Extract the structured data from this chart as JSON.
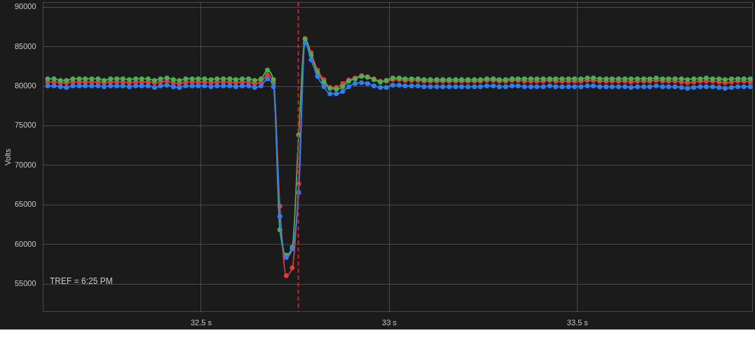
{
  "chart_data": {
    "type": "line",
    "ylabel": "Volts",
    "annotations": [
      "TREF = 6:25 PM"
    ],
    "x": [
      32.093,
      32.11,
      32.127,
      32.143,
      32.16,
      32.177,
      32.193,
      32.21,
      32.227,
      32.243,
      32.26,
      32.277,
      32.293,
      32.31,
      32.327,
      32.343,
      32.36,
      32.377,
      32.393,
      32.41,
      32.427,
      32.443,
      32.46,
      32.477,
      32.493,
      32.51,
      32.527,
      32.543,
      32.56,
      32.577,
      32.593,
      32.61,
      32.627,
      32.643,
      32.66,
      32.677,
      32.693,
      32.71,
      32.727,
      32.743,
      32.76,
      32.777,
      32.793,
      32.81,
      32.827,
      32.843,
      32.86,
      32.877,
      32.893,
      32.91,
      32.927,
      32.943,
      32.96,
      32.977,
      32.993,
      33.01,
      33.027,
      33.043,
      33.06,
      33.077,
      33.093,
      33.11,
      33.127,
      33.143,
      33.16,
      33.177,
      33.193,
      33.21,
      33.227,
      33.243,
      33.26,
      33.277,
      33.293,
      33.31,
      33.327,
      33.343,
      33.36,
      33.377,
      33.393,
      33.41,
      33.427,
      33.443,
      33.46,
      33.477,
      33.493,
      33.51,
      33.527,
      33.543,
      33.56,
      33.577,
      33.593,
      33.61,
      33.627,
      33.643,
      33.66,
      33.677,
      33.693,
      33.71,
      33.727,
      33.743,
      33.76,
      33.777,
      33.793,
      33.81,
      33.827,
      33.843,
      33.86,
      33.877,
      33.893,
      33.91,
      33.927,
      33.943,
      33.96
    ],
    "series": [
      {
        "color": "#e03a3a",
        "values": [
          80500,
          80500,
          80400,
          80400,
          80500,
          80500,
          80500,
          80500,
          80500,
          80400,
          80500,
          80500,
          80500,
          80400,
          80500,
          80500,
          80500,
          80400,
          80500,
          80600,
          80400,
          80300,
          80500,
          80500,
          80500,
          80500,
          80400,
          80500,
          80500,
          80500,
          80400,
          80500,
          80500,
          80300,
          80500,
          81400,
          80400,
          64800,
          56000,
          57000,
          67600,
          86000,
          84200,
          82000,
          80800,
          79800,
          79800,
          80300,
          80750,
          81000,
          81300,
          81150,
          80900,
          80600,
          80600,
          80800,
          80800,
          80700,
          80700,
          80700,
          80600,
          80600,
          80600,
          80600,
          80600,
          80600,
          80600,
          80600,
          80600,
          80600,
          80700,
          80700,
          80600,
          80600,
          80700,
          80700,
          80600,
          80600,
          80600,
          80600,
          80700,
          80600,
          80600,
          80600,
          80600,
          80600,
          80700,
          80700,
          80600,
          80600,
          80600,
          80600,
          80600,
          80500,
          80600,
          80600,
          80600,
          80700,
          80600,
          80600,
          80600,
          80500,
          80400,
          80500,
          80600,
          80600,
          80600,
          80500,
          80400,
          80500,
          80600,
          80600,
          80500
        ]
      },
      {
        "color": "#4caf50",
        "values": [
          80900,
          80900,
          80700,
          80700,
          80900,
          80900,
          80900,
          80900,
          80900,
          80700,
          80900,
          80900,
          80900,
          80800,
          80900,
          80900,
          80900,
          80700,
          80900,
          81000,
          80800,
          80700,
          80900,
          80900,
          80900,
          80900,
          80800,
          80900,
          80900,
          80900,
          80800,
          80900,
          80900,
          80700,
          80900,
          82000,
          80800,
          61800,
          58600,
          59600,
          73800,
          85900,
          83900,
          81700,
          80500,
          79700,
          79600,
          79900,
          80600,
          80900,
          81200,
          81100,
          80800,
          80500,
          80700,
          81000,
          81000,
          80900,
          80900,
          80900,
          80800,
          80800,
          80800,
          80800,
          80800,
          80800,
          80800,
          80800,
          80800,
          80800,
          80900,
          80900,
          80800,
          80800,
          80900,
          80900,
          80900,
          80900,
          80900,
          80900,
          80900,
          80900,
          80900,
          80900,
          80900,
          80900,
          81000,
          81000,
          80900,
          80900,
          80900,
          80900,
          80900,
          80900,
          80900,
          80900,
          80900,
          81000,
          80900,
          80900,
          80900,
          80900,
          80800,
          80900,
          80900,
          81000,
          80900,
          80900,
          80800,
          80900,
          80900,
          80900,
          80900
        ]
      },
      {
        "color": "#2f7ff0",
        "values": [
          80000,
          80000,
          79900,
          79800,
          80000,
          80000,
          80000,
          80000,
          80000,
          79900,
          80000,
          80000,
          80000,
          79900,
          80000,
          80000,
          80000,
          79800,
          80000,
          80100,
          79900,
          79800,
          80000,
          80000,
          80000,
          80000,
          79900,
          80000,
          80000,
          80000,
          79900,
          80000,
          80000,
          79800,
          80000,
          80900,
          79900,
          63500,
          58300,
          59400,
          66500,
          85400,
          83300,
          81200,
          79900,
          79000,
          79000,
          79300,
          79900,
          80300,
          80400,
          80300,
          80000,
          79800,
          79800,
          80100,
          80100,
          80000,
          80000,
          80000,
          79900,
          79900,
          79900,
          79900,
          79900,
          79900,
          79900,
          79900,
          79900,
          79900,
          80000,
          80000,
          79900,
          79900,
          80000,
          80000,
          79900,
          79900,
          79900,
          79900,
          80000,
          79900,
          79900,
          79900,
          79900,
          79900,
          80000,
          80000,
          79900,
          79900,
          79900,
          79900,
          79900,
          79800,
          79900,
          79900,
          79900,
          80000,
          79900,
          79900,
          79900,
          79800,
          79700,
          79800,
          79900,
          79900,
          79900,
          79800,
          79700,
          79800,
          79900,
          79900,
          79900
        ]
      }
    ],
    "xlim": [
      32.08,
      33.965
    ],
    "xticks": [
      {
        "value": 32.5,
        "label": "32.5 s"
      },
      {
        "value": 33,
        "label": "33 s"
      },
      {
        "value": 33.5,
        "label": "33.5 s"
      }
    ],
    "ylim": [
      51500,
      90600
    ],
    "yticks": [
      55000,
      60000,
      65000,
      70000,
      75000,
      80000,
      85000,
      90000
    ],
    "ref_lines": [
      {
        "axis": "x",
        "value": 32.759,
        "color": "#d0201f",
        "line_style": "dashed"
      }
    ],
    "grid": true,
    "marker": "circle",
    "line_style": "solid"
  }
}
